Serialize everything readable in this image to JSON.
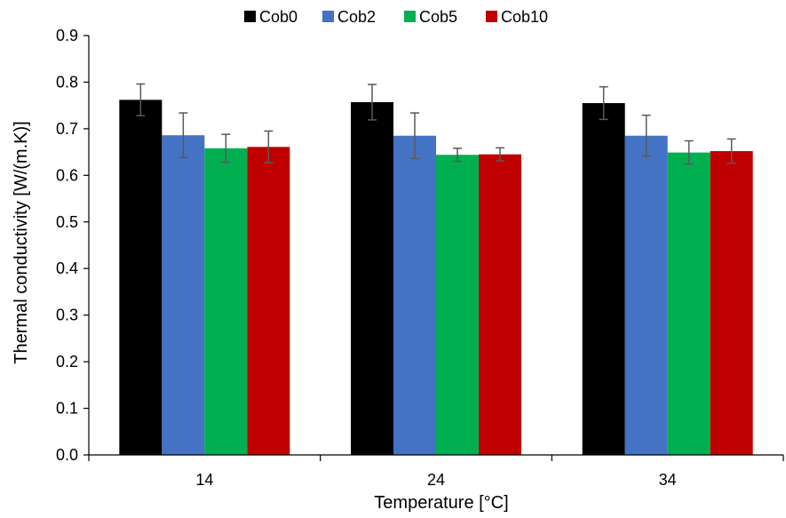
{
  "chart_data": {
    "type": "bar",
    "title": "",
    "xlabel": "Temperature [°C]",
    "ylabel": "Thermal conductivity [W/(m.K)]",
    "ylim": [
      0,
      0.9
    ],
    "yticks": [
      "0.0",
      "0.1",
      "0.2",
      "0.3",
      "0.4",
      "0.5",
      "0.6",
      "0.7",
      "0.8",
      "0.9"
    ],
    "categories": [
      "14",
      "24",
      "34"
    ],
    "grid": false,
    "legend_position": "top",
    "series": [
      {
        "name": "Cob0",
        "color": "#000000",
        "values": [
          0.762,
          0.757,
          0.755
        ],
        "errors": [
          0.034,
          0.038,
          0.035
        ]
      },
      {
        "name": "Cob2",
        "color": "#4472C4",
        "values": [
          0.686,
          0.685,
          0.685
        ],
        "errors": [
          0.048,
          0.049,
          0.044
        ]
      },
      {
        "name": "Cob5",
        "color": "#00B050",
        "values": [
          0.658,
          0.644,
          0.649
        ],
        "errors": [
          0.03,
          0.014,
          0.025
        ]
      },
      {
        "name": "Cob10",
        "color": "#C00000",
        "values": [
          0.661,
          0.645,
          0.652
        ],
        "errors": [
          0.034,
          0.014,
          0.026
        ]
      }
    ]
  }
}
